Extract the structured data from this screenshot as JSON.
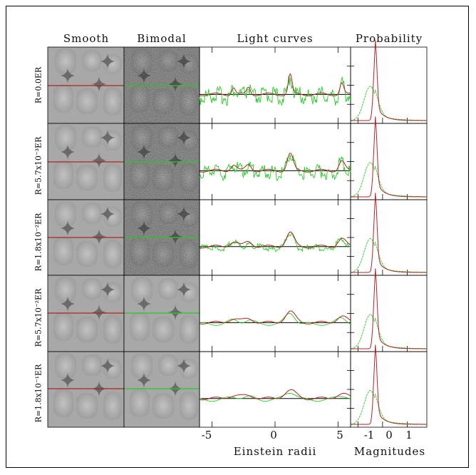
{
  "panel_headers": {
    "smooth": "Smooth",
    "bimodal": "Bimodal",
    "light_curves": "Light curves",
    "probability": "Probability"
  },
  "row_labels": [
    "R=0.0ER",
    "R=5.7x10⁻³ER",
    "R=1.8x10⁻²ER",
    "R=5.7x10⁻²ER",
    "R=1.8x10⁻¹ER"
  ],
  "colors": {
    "smooth_curve": "#b22222",
    "bimodal_curve": "#22cc22",
    "baseline": "#000000",
    "map_background": "#a8a8a8"
  },
  "chart_data": [
    {
      "type": "line",
      "panel": "light_curves",
      "xlabel": "Einstein radii",
      "xticks": [
        -5,
        0,
        5
      ],
      "xlim": [
        -6,
        6
      ],
      "grid": false,
      "series_colors": [
        "#b22222",
        "#22cc22"
      ],
      "caustic_crossings_x": [
        -3.3,
        -2.1,
        1.2,
        5.3
      ]
    },
    {
      "type": "line",
      "panel": "probability",
      "xlabel": "Magnitudes",
      "xticks": [
        -1,
        0,
        1
      ],
      "xlim": [
        -1.3,
        1.8
      ],
      "grid": false,
      "series_colors": [
        "#b22222",
        "#22cc22"
      ],
      "peak_x": -0.3
    }
  ]
}
